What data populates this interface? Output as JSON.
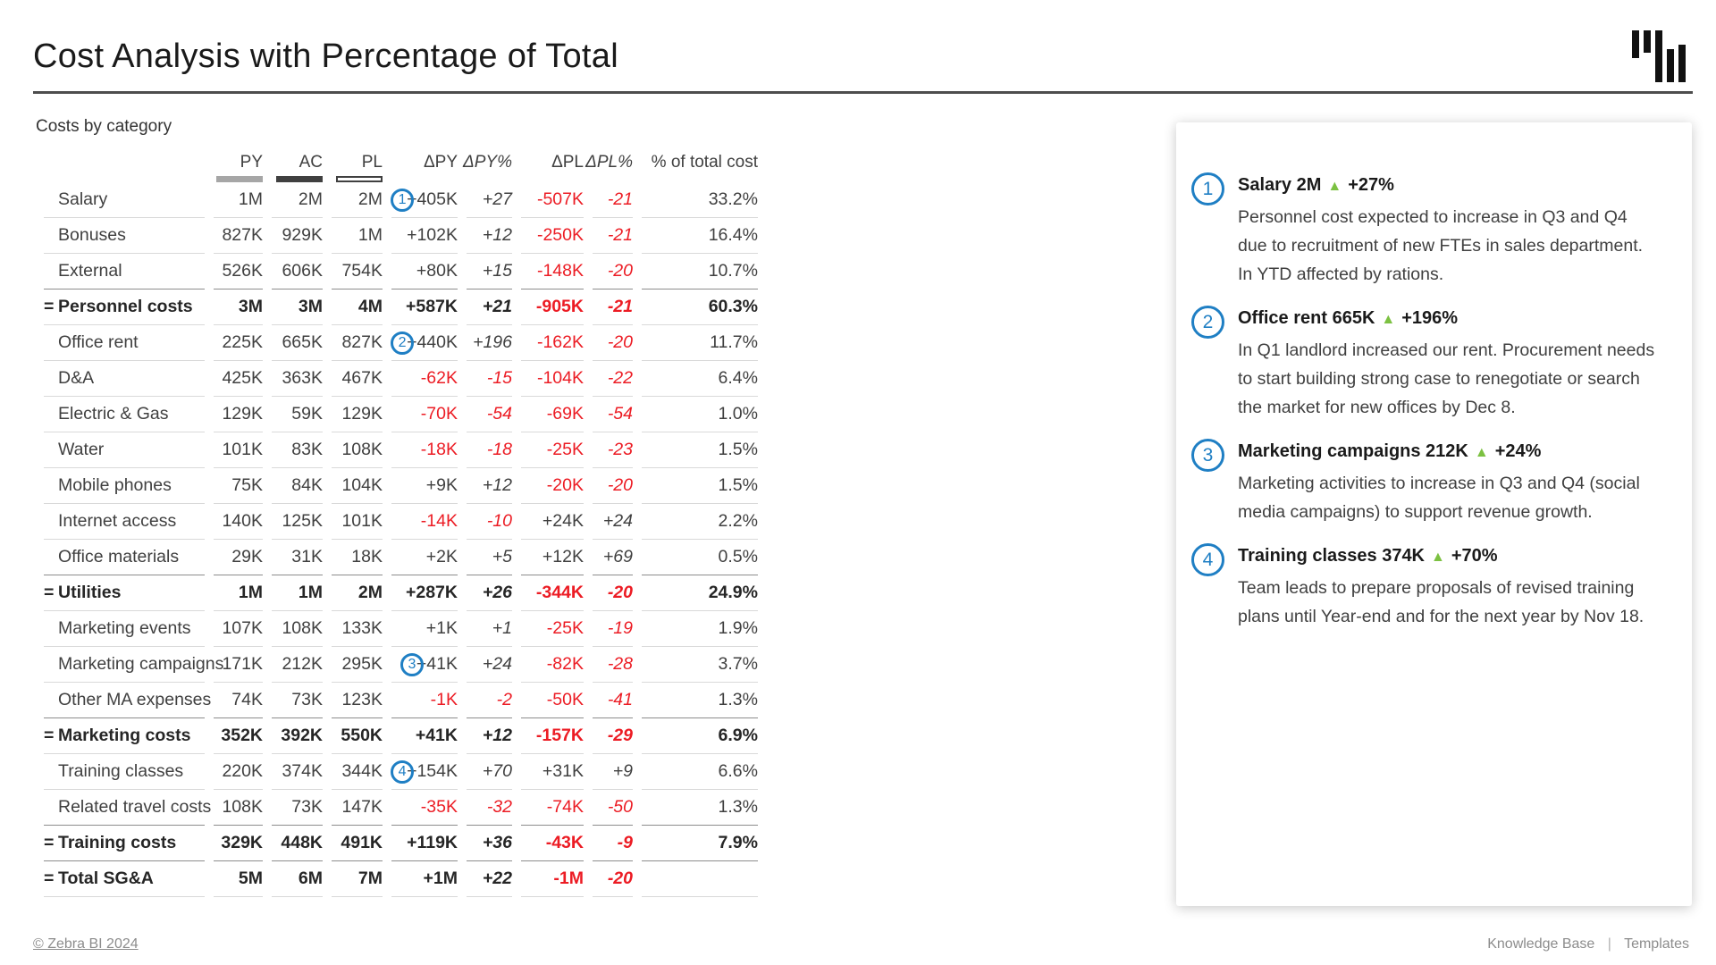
{
  "page_title": "Cost Analysis with Percentage of Total",
  "chart_data": {
    "type": "table",
    "title": "Costs by category",
    "columns": [
      "PY",
      "AC",
      "PL",
      "ΔPY",
      "ΔPY%",
      "ΔPL",
      "ΔPL%",
      "% of total cost"
    ],
    "legend_markers": {
      "PY": "solid-gray-bar",
      "AC": "solid-dark-bar",
      "PL": "outlined-white-bar"
    },
    "subtotal_prefix": "=",
    "rows": [
      {
        "label": "Salary",
        "subtotal": false,
        "badge": 1,
        "py": "1M",
        "ac": "2M",
        "pl": "2M",
        "dpy": "+405K",
        "dpy_pct": "+27",
        "dpl": "-507K",
        "dpl_pct": "-21",
        "pct_total": "33.2%"
      },
      {
        "label": "Bonuses",
        "subtotal": false,
        "badge": null,
        "py": "827K",
        "ac": "929K",
        "pl": "1M",
        "dpy": "+102K",
        "dpy_pct": "+12",
        "dpl": "-250K",
        "dpl_pct": "-21",
        "pct_total": "16.4%"
      },
      {
        "label": "External",
        "subtotal": false,
        "badge": null,
        "py": "526K",
        "ac": "606K",
        "pl": "754K",
        "dpy": "+80K",
        "dpy_pct": "+15",
        "dpl": "-148K",
        "dpl_pct": "-20",
        "pct_total": "10.7%"
      },
      {
        "label": "Personnel costs",
        "subtotal": true,
        "badge": null,
        "py": "3M",
        "ac": "3M",
        "pl": "4M",
        "dpy": "+587K",
        "dpy_pct": "+21",
        "dpl": "-905K",
        "dpl_pct": "-21",
        "pct_total": "60.3%"
      },
      {
        "label": "Office rent",
        "subtotal": false,
        "badge": 2,
        "py": "225K",
        "ac": "665K",
        "pl": "827K",
        "dpy": "+440K",
        "dpy_pct": "+196",
        "dpl": "-162K",
        "dpl_pct": "-20",
        "pct_total": "11.7%"
      },
      {
        "label": "D&A",
        "subtotal": false,
        "badge": null,
        "py": "425K",
        "ac": "363K",
        "pl": "467K",
        "dpy": "-62K",
        "dpy_pct": "-15",
        "dpl": "-104K",
        "dpl_pct": "-22",
        "pct_total": "6.4%"
      },
      {
        "label": "Electric & Gas",
        "subtotal": false,
        "badge": null,
        "py": "129K",
        "ac": "59K",
        "pl": "129K",
        "dpy": "-70K",
        "dpy_pct": "-54",
        "dpl": "-69K",
        "dpl_pct": "-54",
        "pct_total": "1.0%"
      },
      {
        "label": "Water",
        "subtotal": false,
        "badge": null,
        "py": "101K",
        "ac": "83K",
        "pl": "108K",
        "dpy": "-18K",
        "dpy_pct": "-18",
        "dpl": "-25K",
        "dpl_pct": "-23",
        "pct_total": "1.5%"
      },
      {
        "label": "Mobile phones",
        "subtotal": false,
        "badge": null,
        "py": "75K",
        "ac": "84K",
        "pl": "104K",
        "dpy": "+9K",
        "dpy_pct": "+12",
        "dpl": "-20K",
        "dpl_pct": "-20",
        "pct_total": "1.5%"
      },
      {
        "label": "Internet access",
        "subtotal": false,
        "badge": null,
        "py": "140K",
        "ac": "125K",
        "pl": "101K",
        "dpy": "-14K",
        "dpy_pct": "-10",
        "dpl": "+24K",
        "dpl_pct": "+24",
        "pct_total": "2.2%"
      },
      {
        "label": "Office materials",
        "subtotal": false,
        "badge": null,
        "py": "29K",
        "ac": "31K",
        "pl": "18K",
        "dpy": "+2K",
        "dpy_pct": "+5",
        "dpl": "+12K",
        "dpl_pct": "+69",
        "pct_total": "0.5%"
      },
      {
        "label": "Utilities",
        "subtotal": true,
        "badge": null,
        "py": "1M",
        "ac": "1M",
        "pl": "2M",
        "dpy": "+287K",
        "dpy_pct": "+26",
        "dpl": "-344K",
        "dpl_pct": "-20",
        "pct_total": "24.9%"
      },
      {
        "label": "Marketing events",
        "subtotal": false,
        "badge": null,
        "py": "107K",
        "ac": "108K",
        "pl": "133K",
        "dpy": "+1K",
        "dpy_pct": "+1",
        "dpl": "-25K",
        "dpl_pct": "-19",
        "pct_total": "1.9%"
      },
      {
        "label": "Marketing campaigns",
        "subtotal": false,
        "badge": 3,
        "py": "171K",
        "ac": "212K",
        "pl": "295K",
        "dpy": "+41K",
        "dpy_pct": "+24",
        "dpl": "-82K",
        "dpl_pct": "-28",
        "pct_total": "3.7%"
      },
      {
        "label": "Other MA expenses",
        "subtotal": false,
        "badge": null,
        "py": "74K",
        "ac": "73K",
        "pl": "123K",
        "dpy": "-1K",
        "dpy_pct": "-2",
        "dpl": "-50K",
        "dpl_pct": "-41",
        "pct_total": "1.3%"
      },
      {
        "label": "Marketing costs",
        "subtotal": true,
        "badge": null,
        "py": "352K",
        "ac": "392K",
        "pl": "550K",
        "dpy": "+41K",
        "dpy_pct": "+12",
        "dpl": "-157K",
        "dpl_pct": "-29",
        "pct_total": "6.9%"
      },
      {
        "label": "Training classes",
        "subtotal": false,
        "badge": 4,
        "py": "220K",
        "ac": "374K",
        "pl": "344K",
        "dpy": "+154K",
        "dpy_pct": "+70",
        "dpl": "+31K",
        "dpl_pct": "+9",
        "pct_total": "6.6%"
      },
      {
        "label": "Related travel costs",
        "subtotal": false,
        "badge": null,
        "py": "108K",
        "ac": "73K",
        "pl": "147K",
        "dpy": "-35K",
        "dpy_pct": "-32",
        "dpl": "-74K",
        "dpl_pct": "-50",
        "pct_total": "1.3%"
      },
      {
        "label": "Training costs",
        "subtotal": true,
        "badge": null,
        "py": "329K",
        "ac": "448K",
        "pl": "491K",
        "dpy": "+119K",
        "dpy_pct": "+36",
        "dpl": "-43K",
        "dpl_pct": "-9",
        "pct_total": "7.9%"
      },
      {
        "label": "Total SG&A",
        "subtotal": true,
        "badge": null,
        "py": "5M",
        "ac": "6M",
        "pl": "7M",
        "dpy": "+1M",
        "dpy_pct": "+22",
        "dpl": "-1M",
        "dpl_pct": "-20",
        "pct_total": ""
      }
    ]
  },
  "annotations": [
    {
      "num": "1",
      "label": "Salary",
      "value": "2M",
      "change": "+27%",
      "text": "Personnel cost expected to increase in Q3 and Q4 due to recruitment of new FTEs in sales department. In YTD affected by rations."
    },
    {
      "num": "2",
      "label": "Office rent",
      "value": "665K",
      "change": "+196%",
      "text": "In Q1 landlord increased our rent. Procurement needs to start building strong case to renegotiate or search the market for new offices by Dec 8."
    },
    {
      "num": "3",
      "label": "Marketing campaigns",
      "value": "212K",
      "change": "+24%",
      "text": "Marketing activities to increase in Q3 and Q4 (social media campaigns) to support revenue growth."
    },
    {
      "num": "4",
      "label": "Training classes",
      "value": "374K",
      "change": "+70%",
      "text": "Team leads to prepare proposals of revised training plans until Year-end and for the next year by Nov 18."
    }
  ],
  "footer": {
    "copyright": "© Zebra BI 2024",
    "links": [
      "Knowledge Base",
      "Templates"
    ],
    "separator": "|"
  },
  "colors": {
    "negative_red": "#ec1c24",
    "triangle_green": "#7cc142",
    "annotation_blue": "#1f7fc4",
    "py_marker": "#a6a6a6",
    "ac_marker": "#404040",
    "pl_marker_border": "#404040"
  },
  "triangle_glyph": "▲"
}
